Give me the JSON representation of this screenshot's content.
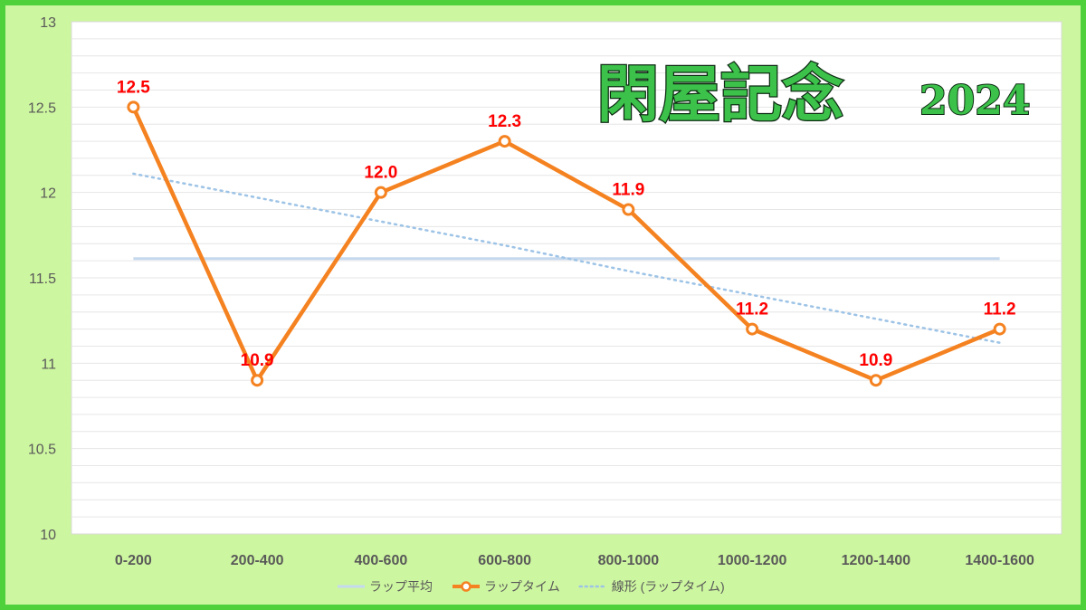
{
  "chart_data": {
    "type": "line",
    "title": "閑屋記念",
    "title_year": "2024",
    "categories": [
      "0-200",
      "200-400",
      "400-600",
      "600-800",
      "800-1000",
      "1000-1200",
      "1200-1400",
      "1400-1600"
    ],
    "ylim": [
      10,
      13
    ],
    "yticks": [
      "10",
      "10.5",
      "11",
      "11.5",
      "12",
      "12.5",
      "13"
    ],
    "series": [
      {
        "name": "ラップ平均",
        "style": "solid",
        "color": "#c5d9ee",
        "values": [
          11.6125,
          11.6125,
          11.6125,
          11.6125,
          11.6125,
          11.6125,
          11.6125,
          11.6125
        ]
      },
      {
        "name": "ラップタイム",
        "style": "line-markers",
        "color": "#f58220",
        "values": [
          12.5,
          10.9,
          12.0,
          12.3,
          11.9,
          11.2,
          10.9,
          11.2
        ],
        "labels": [
          "12.5",
          "10.9",
          "12.0",
          "12.3",
          "11.9",
          "11.2",
          "10.9",
          "11.2"
        ],
        "label_color": "#ff0000"
      },
      {
        "name": "線形 (ラップタイム)",
        "style": "dotted",
        "color": "#9dc3e6",
        "values": [
          12.11,
          11.97,
          11.83,
          11.69,
          11.54,
          11.4,
          11.26,
          11.12
        ]
      }
    ],
    "grid": true,
    "legend_position": "bottom"
  }
}
